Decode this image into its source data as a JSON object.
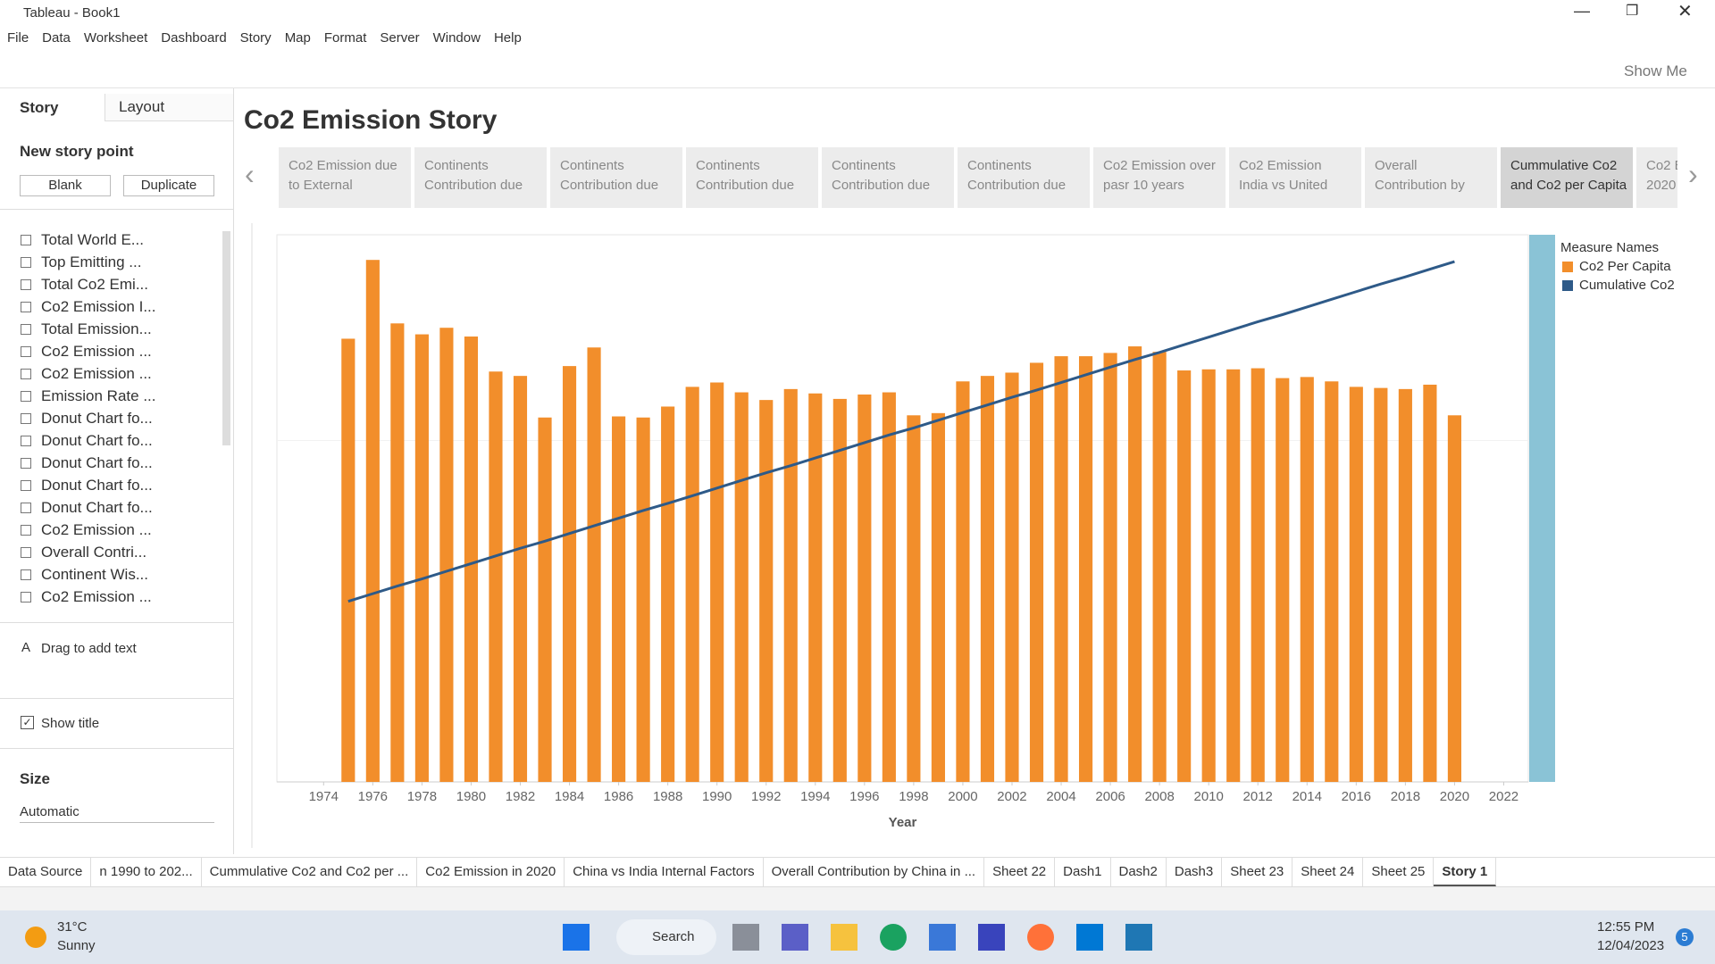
{
  "window": {
    "title": "Tableau - Book1"
  },
  "menu": [
    "File",
    "Data",
    "Worksheet",
    "Dashboard",
    "Story",
    "Map",
    "Format",
    "Server",
    "Window",
    "Help"
  ],
  "toolbar": {
    "show_me": "Show Me"
  },
  "sidebar": {
    "tabs": [
      "Story",
      "Layout"
    ],
    "new_story_point": "New story point",
    "buttons": [
      "Blank",
      "Duplicate"
    ],
    "sheets": [
      "Total World E...",
      "Top Emitting ...",
      "Total Co2 Emi...",
      "Co2 Emission I...",
      "Total Emission...",
      "Co2 Emission ...",
      "Co2 Emission  ...",
      "Emission Rate ...",
      "Donut Chart fo...",
      "Donut Chart fo...",
      "Donut Chart fo...",
      "Donut Chart fo...",
      "Donut Chart fo...",
      "Co2 Emission ...",
      "Overall Contri...",
      "Continent Wis...",
      "Co2 Emission ..."
    ],
    "drag_text": "Drag to add text",
    "show_title": "Show title",
    "size_label": "Size",
    "size_value": "Automatic"
  },
  "story": {
    "title": "Co2 Emission Story",
    "points": [
      [
        "Co2 Emission due",
        "to External"
      ],
      [
        "Continents",
        "Contribution due"
      ],
      [
        "Continents",
        "Contribution due"
      ],
      [
        "Continents",
        "Contribution due"
      ],
      [
        "Continents",
        "Contribution due"
      ],
      [
        "Continents",
        "Contribution due"
      ],
      [
        "Co2 Emission over",
        "pasr 10 years"
      ],
      [
        "Co2 Emission",
        "India vs United"
      ],
      [
        "Overall",
        "Contribution by"
      ],
      [
        "Cummulative Co2",
        "and Co2 per Capita"
      ],
      [
        "Co2 E",
        "2020"
      ]
    ]
  },
  "chart_data": {
    "type": "bar_line",
    "x_label": "Year",
    "legend_title": "Measure Names",
    "x": [
      1975,
      1976,
      1977,
      1978,
      1979,
      1980,
      1981,
      1982,
      1983,
      1984,
      1985,
      1986,
      1987,
      1988,
      1989,
      1990,
      1991,
      1992,
      1993,
      1994,
      1995,
      1996,
      1997,
      1998,
      1999,
      2000,
      2001,
      2002,
      2003,
      2004,
      2005,
      2006,
      2007,
      2008,
      2009,
      2010,
      2011,
      2012,
      2013,
      2014,
      2015,
      2016,
      2017,
      2018,
      2019,
      2020
    ],
    "series": [
      {
        "name": "Co2 Per Capita",
        "type": "bar",
        "color": "#f28e2b",
        "values": [
          81,
          95.4,
          83.8,
          81.8,
          83,
          81.4,
          75,
          74.2,
          66.6,
          76,
          79.4,
          66.8,
          66.6,
          68.6,
          72.2,
          73,
          71.2,
          69.8,
          71.8,
          71,
          70,
          70.8,
          71.2,
          67,
          67.4,
          73.2,
          74.2,
          74.8,
          76.6,
          77.8,
          77.8,
          78.4,
          79.6,
          78.6,
          75.2,
          75.4,
          75.4,
          75.6,
          73.8,
          74,
          73.2,
          72.2,
          72,
          71.8,
          72.6,
          67
        ]
      },
      {
        "name": "Cumulative Co2",
        "type": "line",
        "color": "#2e5a88",
        "values": [
          33.0,
          34.4,
          35.8,
          37.1,
          38.5,
          39.9,
          41.3,
          42.7,
          44.0,
          45.4,
          46.8,
          48.2,
          49.6,
          50.9,
          52.3,
          53.7,
          55.1,
          56.5,
          57.8,
          59.2,
          60.6,
          62.0,
          63.4,
          64.7,
          66.1,
          67.5,
          68.9,
          70.3,
          71.6,
          73.0,
          74.4,
          75.8,
          77.2,
          78.5,
          79.9,
          81.3,
          82.7,
          84.1,
          85.4,
          86.8,
          88.2,
          89.6,
          91.0,
          92.3,
          93.7,
          95.1
        ]
      }
    ],
    "xlim": [
      1972.1,
      2023
    ],
    "xticks": [
      1974,
      1976,
      1978,
      1980,
      1982,
      1984,
      1986,
      1988,
      1990,
      1992,
      1994,
      1996,
      1998,
      2000,
      2002,
      2004,
      2006,
      2008,
      2010,
      2012,
      2014,
      2016,
      2018,
      2020,
      2022
    ],
    "ylim": [
      0,
      100
    ]
  },
  "tabs": [
    "Data Source",
    "n 1990 to 202...",
    "Cummulative Co2 and Co2 per ...",
    "Co2 Emission in 2020",
    "China vs India Internal Factors",
    "Overall Contribution by China in ...",
    "Sheet 22",
    "Dash1",
    "Dash2",
    "Dash3",
    "Sheet 23",
    "Sheet 24",
    "Sheet 25",
    "Story 1"
  ],
  "taskbar": {
    "temperature": "31°C",
    "weather": "Sunny",
    "search": "Search",
    "time": "12:55 PM",
    "date": "12/04/2023",
    "badge": "5"
  }
}
